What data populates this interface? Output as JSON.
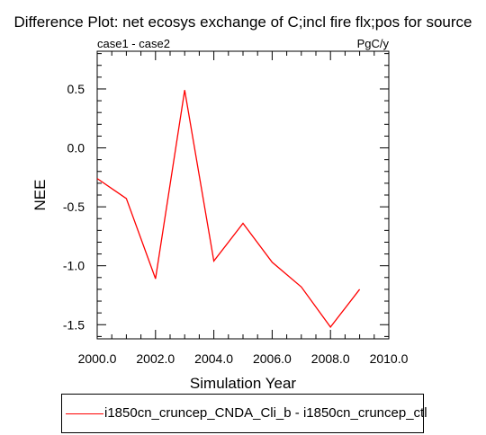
{
  "chart_data": {
    "type": "line",
    "title": "Difference Plot: net ecosys exchange of C;incl fire flx;pos for source",
    "subtitle_left": "case1 - case2",
    "subtitle_right": "PgC/y",
    "xlabel": "Simulation Year",
    "ylabel": "NEE",
    "xlim": [
      2000.0,
      2010.0
    ],
    "ylim": [
      -1.62,
      0.82
    ],
    "xticks": [
      2000.0,
      2002.0,
      2004.0,
      2006.0,
      2008.0,
      2010.0
    ],
    "xtick_labels": [
      "2000.0",
      "2002.0",
      "2004.0",
      "2006.0",
      "2008.0",
      "2010.0"
    ],
    "yticks": [
      0.5,
      0.0,
      -0.5,
      -1.0,
      -1.5
    ],
    "ytick_labels": [
      "0.5",
      "0.0",
      "-0.5",
      "-1.0",
      "-1.5"
    ],
    "grid": false,
    "legend_position": "bottom",
    "series": [
      {
        "name": "i1850cn_cruncep_CNDA_Cli_b - i1850cn_cruncep_ctl",
        "color": "#ff0000",
        "x": [
          2000,
          2001,
          2002,
          2003,
          2004,
          2005,
          2006,
          2007,
          2008,
          2009
        ],
        "y": [
          -0.26,
          -0.43,
          -1.11,
          0.49,
          -0.96,
          -0.64,
          -0.97,
          -1.18,
          -1.52,
          -1.2
        ]
      }
    ]
  }
}
